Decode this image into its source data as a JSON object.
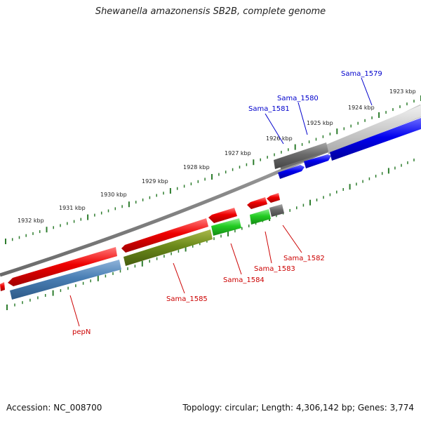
{
  "title": "Shewanella amazonensis SB2B, complete genome",
  "footer": {
    "accession": "Accession: NC_008700",
    "summary": "Topology: circular; Length: 4,306,142 bp; Genes: 3,774"
  },
  "colors": {
    "backbone": "#8a8a8a",
    "ticks": "#2e7d2e",
    "forward_label": "#0000cc",
    "reverse_label": "#cc0000"
  },
  "ruler": {
    "outer": [
      {
        "label": "1923 kbp"
      },
      {
        "label": "1924 kbp"
      },
      {
        "label": "1925 kbp"
      },
      {
        "label": "1926 kbp"
      },
      {
        "label": "1927 kbp"
      },
      {
        "label": "1928 kbp"
      },
      {
        "label": "1929 kbp"
      },
      {
        "label": "1930 kbp"
      },
      {
        "label": "1931 kbp"
      },
      {
        "label": "1932 kbp"
      }
    ]
  },
  "gene_labels": {
    "forward": [
      {
        "text": "Sama_1579"
      },
      {
        "text": "Sama_1580"
      },
      {
        "text": "Sama_1581"
      }
    ],
    "reverse": [
      {
        "text": "Sama_1582"
      },
      {
        "text": "Sama_1583"
      },
      {
        "text": "Sama_1584"
      },
      {
        "text": "Sama_1585"
      },
      {
        "text": "pepN"
      }
    ]
  }
}
